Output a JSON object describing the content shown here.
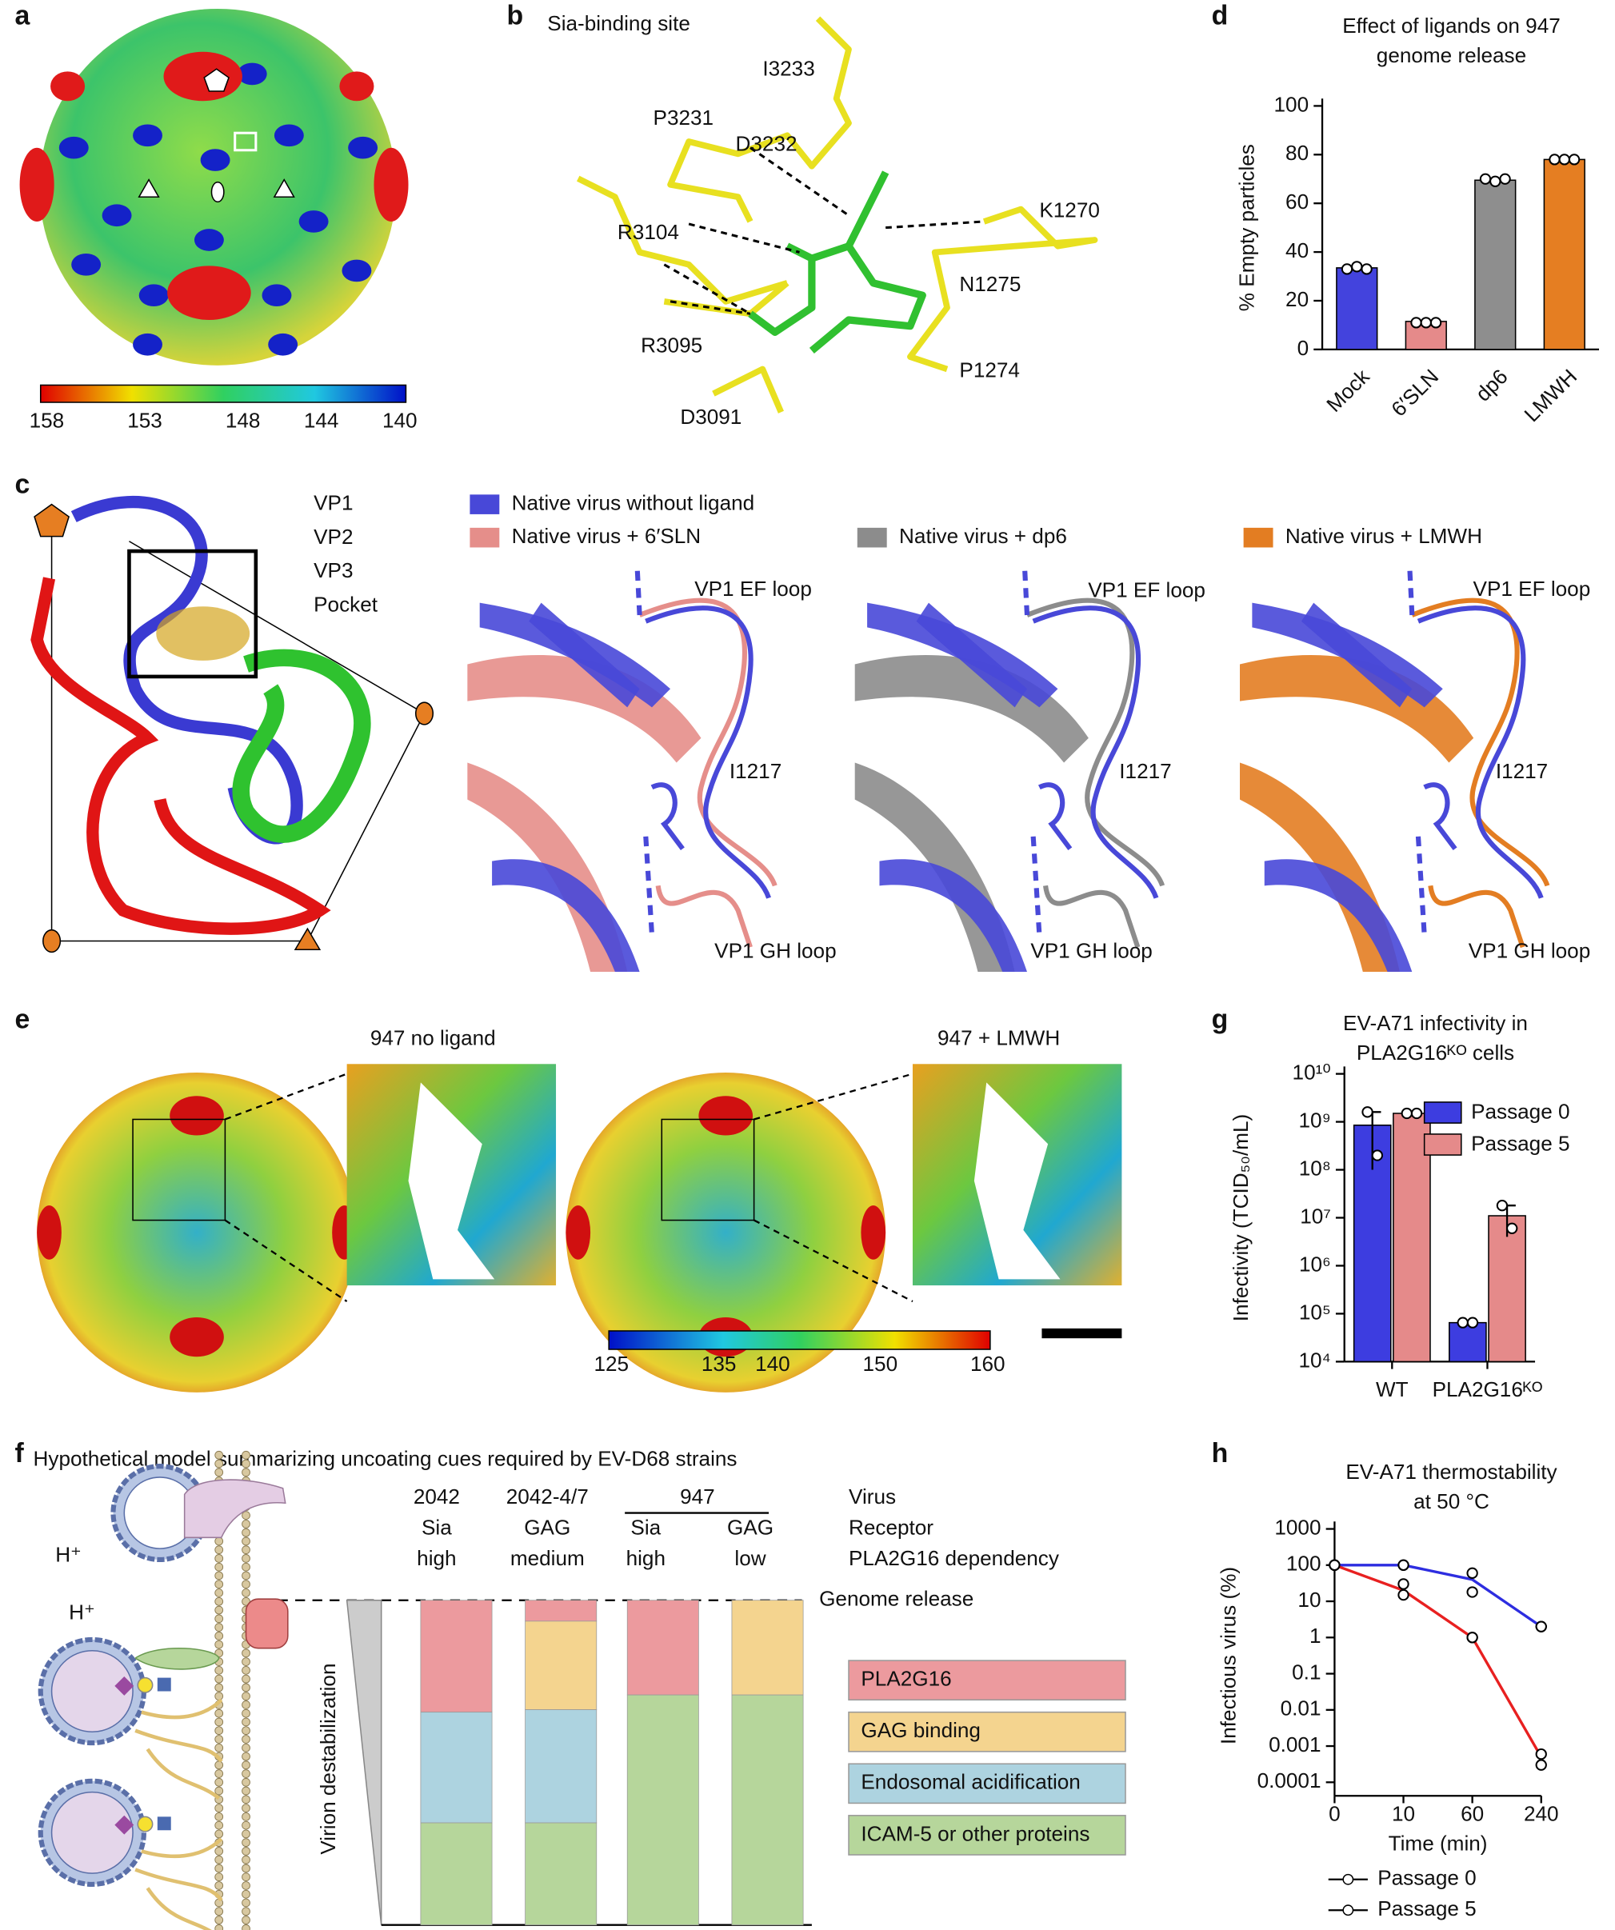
{
  "panel_labels": [
    "a",
    "b",
    "c",
    "d",
    "e",
    "f",
    "g",
    "h"
  ],
  "panel_a": {
    "colorbar_ticks": [
      158,
      153,
      148,
      144,
      140
    ]
  },
  "panel_b": {
    "title": "Sia-binding site",
    "residues": [
      "I3233",
      "P3231",
      "D3232",
      "R3104",
      "K1270",
      "N1275",
      "R3095",
      "P1274",
      "D3091"
    ]
  },
  "panel_c": {
    "chains": [
      {
        "name": "VP1",
        "color": "#3a3ad2"
      },
      {
        "name": "VP2",
        "color": "#2fc22f"
      },
      {
        "name": "VP3",
        "color": "#e01515"
      },
      {
        "name": "Pocket",
        "color": "#d4a520"
      }
    ],
    "legend": [
      {
        "name": "Native virus without ligand",
        "color": "#4848d8"
      },
      {
        "name": "Native virus + 6′SLN",
        "color": "#e58e8a"
      },
      {
        "name": "Native virus + dp6",
        "color": "#8c8c8c"
      },
      {
        "name": "Native virus + LMWH",
        "color": "#e37d22"
      }
    ],
    "loop_ef": "VP1 EF loop",
    "residue": "I1217",
    "loop_gh": "VP1 GH loop"
  },
  "panel_e": {
    "labels": [
      "947 no ligand",
      "947 + LMWH"
    ],
    "colorbar_ticks": [
      125,
      135,
      140,
      150,
      160
    ]
  },
  "panel_f": {
    "title": "Hypothetical model summarizing uncoating cues required by EV-D68 strains",
    "virus": [
      "2042",
      "2042-4/7",
      "947"
    ],
    "receptor": [
      "Sia",
      "GAG",
      "Sia",
      "GAG"
    ],
    "dependency": [
      "high",
      "medium",
      "high",
      "low"
    ],
    "row_labels": [
      "Virus",
      "Receptor",
      "PLA2G16 dependency"
    ],
    "genome_release": "Genome release",
    "axis_label": "Virion destabilization",
    "proton": "H⁺",
    "legend": [
      {
        "name": "PLA2G16",
        "color": "#ec9a9e"
      },
      {
        "name": "GAG binding",
        "color": "#f4d48f"
      },
      {
        "name": "Endosomal acidification",
        "color": "#add3e0"
      },
      {
        "name": "ICAM-5 or other proteins",
        "color": "#b6d69b"
      }
    ]
  },
  "chart_data": [
    {
      "type": "bar",
      "title": [
        "Effect of ligands on 947",
        "genome release"
      ],
      "ylabel": "% Empty particles",
      "categories": [
        "Mock",
        "6′SLN",
        "dp6",
        "LMWH"
      ],
      "values": [
        33.5,
        11.5,
        69.5,
        78
      ],
      "colors": [
        "#4343dd",
        "#e58a8a",
        "#8e8e8e",
        "#e57e22"
      ],
      "points": [
        [
          33,
          34,
          33
        ],
        [
          11,
          11,
          11
        ],
        [
          70,
          69,
          70
        ],
        [
          78,
          78,
          78
        ]
      ],
      "ylim": [
        0,
        100
      ],
      "yticks": [
        0,
        20,
        40,
        60,
        80,
        100
      ]
    },
    {
      "type": "bar",
      "log": true,
      "title": [
        "EV-A71 infectivity in",
        "PLA2G16ᴷᴼ cells"
      ],
      "ylabel": "Infectivity (TCID₅₀/mL)",
      "categories": [
        "WT",
        "PLA2G16ᴷᴼ"
      ],
      "legend": "upper right",
      "series": [
        {
          "name": "Passage 0",
          "color": "#3d3de0",
          "values": [
            850000000,
            65000
          ],
          "errors": [
            750000000,
            0
          ],
          "points": [
            [
              1600000000,
              200000000
            ],
            [
              65000,
              65000
            ]
          ]
        },
        {
          "name": "Passage 5",
          "color": "#e58a8a",
          "values": [
            1500000000,
            11000000
          ],
          "errors": [
            0,
            7000000
          ],
          "points": [
            [
              1500000000,
              1500000000
            ],
            [
              18000000,
              6000000
            ]
          ]
        }
      ],
      "ylim": [
        10000,
        10000000000
      ],
      "yticks": [
        {
          "value": 10000,
          "label": "10⁴"
        },
        {
          "value": 100000,
          "label": "10⁵"
        },
        {
          "value": 1000000,
          "label": "10⁶"
        },
        {
          "value": 10000000,
          "label": "10⁷"
        },
        {
          "value": 100000000,
          "label": "10⁸"
        },
        {
          "value": 1000000000,
          "label": "10⁹"
        },
        {
          "value": 10000000000,
          "label": "10¹⁰"
        }
      ]
    },
    {
      "type": "line",
      "log": true,
      "title": [
        "EV-A71 thermostability",
        "at 50 °C"
      ],
      "xlabel": "Time (min)",
      "ylabel": "Infectious virus (%)",
      "categories": [
        "0",
        "10",
        "60",
        "240"
      ],
      "legend": "below",
      "series": [
        {
          "name": "Passage 0",
          "color": "#2d2de0",
          "values": [
            100,
            100,
            40,
            2
          ],
          "points": [
            [
              100,
              100
            ],
            [
              100,
              100
            ],
            [
              60,
              18
            ],
            [
              2,
              2
            ]
          ]
        },
        {
          "name": "Passage 5",
          "color": "#e82020",
          "values": [
            100,
            20,
            1,
            0.0005
          ],
          "points": [
            [
              100,
              100
            ],
            [
              30,
              15
            ],
            [
              1,
              1
            ],
            [
              0.0006,
              0.0003
            ]
          ]
        }
      ],
      "ylim": [
        0.0001,
        1000
      ],
      "yticks": [
        0.0001,
        0.001,
        0.01,
        0.1,
        1,
        10,
        100,
        1000
      ]
    }
  ]
}
